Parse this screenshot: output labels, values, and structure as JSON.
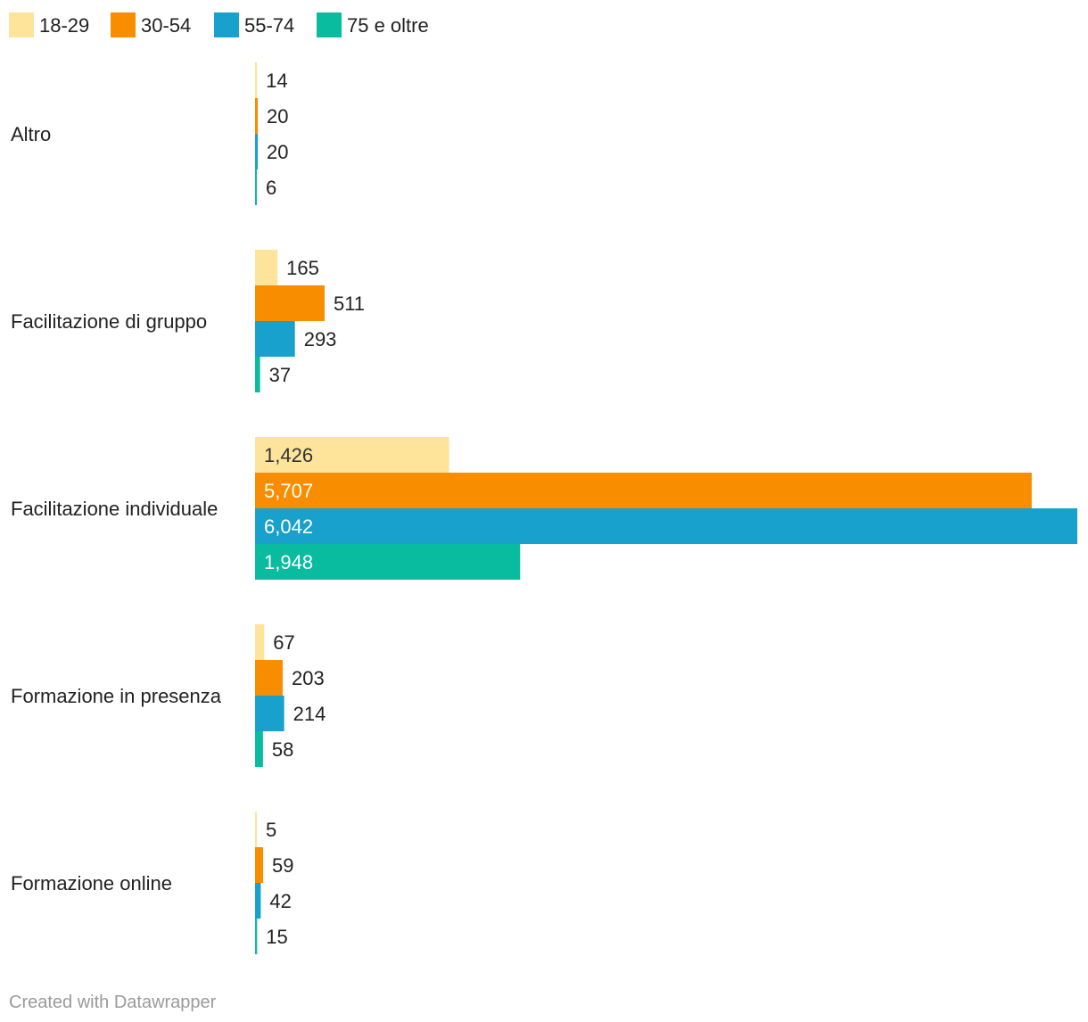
{
  "chart_data": {
    "type": "bar",
    "orientation": "horizontal",
    "categories": [
      "Altro",
      "Facilitazione di gruppo",
      "Facilitazione individuale",
      "Formazione in presenza",
      "Formazione online"
    ],
    "series": [
      {
        "name": "18-29",
        "color": "#fee39b",
        "values": [
          14,
          165,
          1426,
          67,
          5
        ]
      },
      {
        "name": "30-54",
        "color": "#f98d00",
        "values": [
          20,
          511,
          5707,
          203,
          59
        ]
      },
      {
        "name": "55-74",
        "color": "#18a1cd",
        "values": [
          20,
          293,
          6042,
          214,
          42
        ]
      },
      {
        "name": "75 e oltre",
        "color": "#09bb9f",
        "values": [
          6,
          37,
          1948,
          58,
          15
        ]
      }
    ],
    "value_labels": [
      [
        "14",
        "165",
        "1,426",
        "67",
        "5"
      ],
      [
        "20",
        "511",
        "5,707",
        "203",
        "59"
      ],
      [
        "20",
        "293",
        "6,042",
        "214",
        "42"
      ],
      [
        "6",
        "37",
        "1,948",
        "58",
        "15"
      ]
    ],
    "legend_position": "top-left",
    "xlim": [
      0,
      6042
    ],
    "grid": false
  },
  "footer": {
    "credit": "Created with Datawrapper"
  }
}
